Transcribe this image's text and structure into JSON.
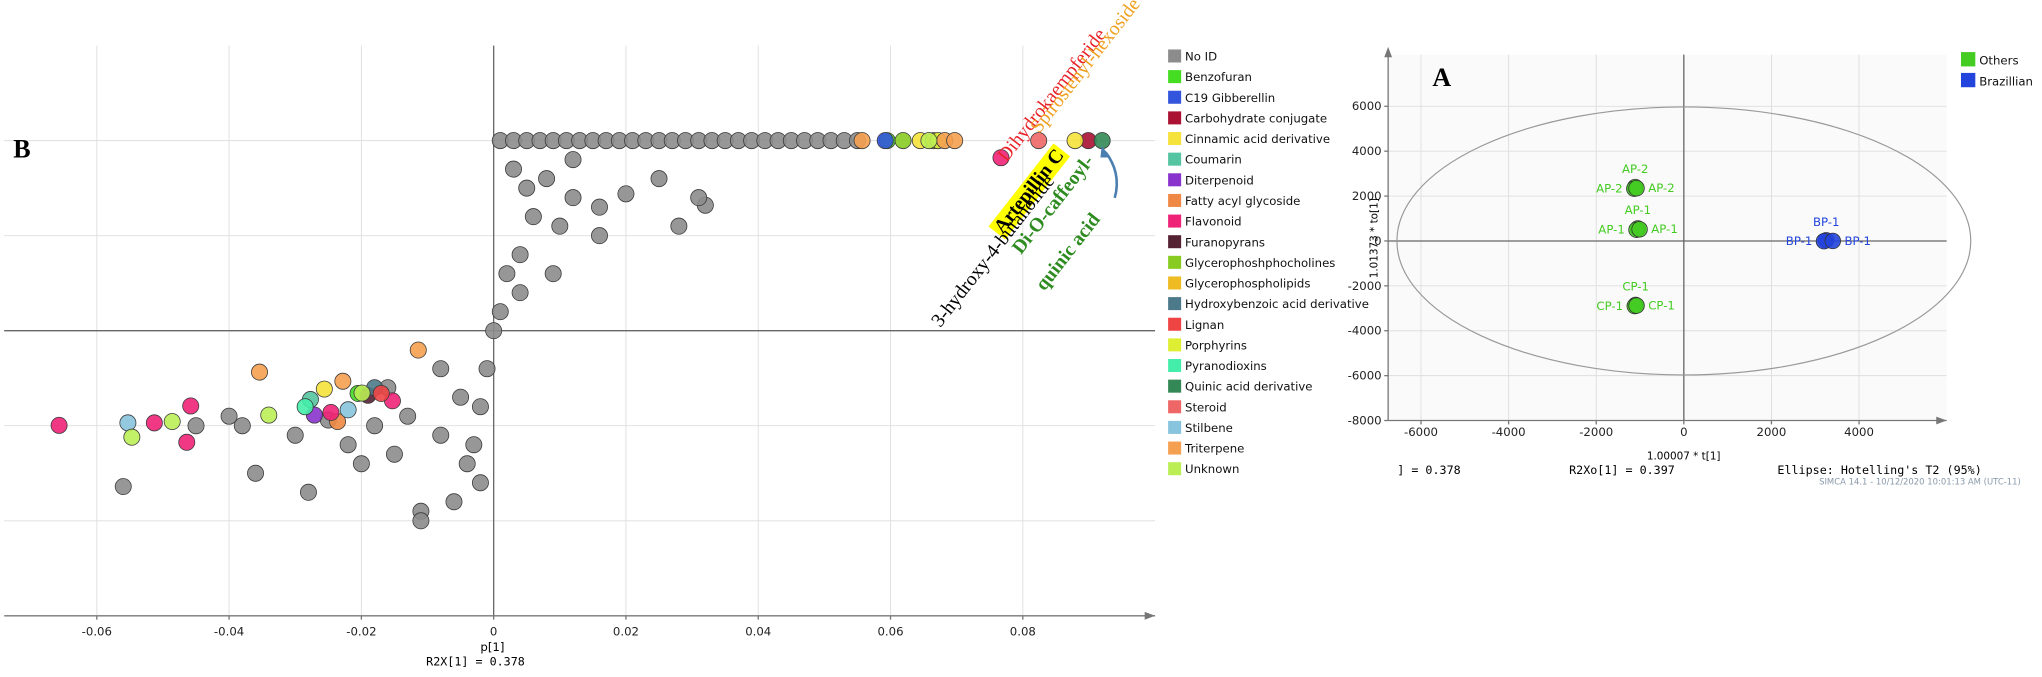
{
  "chart_data": [
    {
      "type": "scatter",
      "panel": "B",
      "xlabel": "p[1]",
      "xlabel2": "R2X[1] = 0.378",
      "xlim": [
        -0.074,
        0.1
      ],
      "ylim": [
        -1.5,
        1.5
      ],
      "xticks": [
        -0.06,
        -0.04,
        -0.02,
        0,
        0.02,
        0.04,
        0.06,
        0.08
      ],
      "yticks": [
        -1,
        -0.5,
        0,
        0.5,
        1
      ],
      "ytick_labels": false,
      "grid": true,
      "legend": "right",
      "annotations": [
        {
          "text": "Dihydrokaempferide",
          "color": "#e8242a"
        },
        {
          "text": "Spirostenyl-hexoside",
          "color": "#f0a020"
        },
        {
          "text": "Artepillin C",
          "color": "#000000",
          "highlight": "#ffff00"
        },
        {
          "text": "3-hydroxy-4-butanolide",
          "color": "#000000"
        },
        {
          "text": "Di-O-caffeoyl-",
          "color": "#2e8b20"
        },
        {
          "text": "quinic acid",
          "color": "#2e8b20"
        }
      ],
      "series": [
        {
          "name": "No ID",
          "color": "#8c8c8c",
          "x": [
            0.001,
            0.003,
            0.005,
            0.007,
            0.009,
            0.011,
            0.013,
            0.015,
            0.017,
            0.019,
            0.021,
            0.023,
            0.025,
            0.027,
            0.029,
            0.031,
            0.033,
            0.035,
            0.037,
            0.039,
            0.041,
            0.043,
            0.045,
            0.047,
            0.049,
            0.051,
            0.053,
            0.055,
            0.003,
            0.005,
            0.008,
            0.012,
            0.016,
            0.02,
            0.025,
            0.032,
            0.016,
            0.01,
            0.006,
            0.004,
            0.002,
            0.001,
            0.0,
            -0.001,
            -0.002,
            -0.003,
            -0.002,
            -0.011,
            -0.011,
            -0.004,
            -0.008,
            -0.013,
            -0.018,
            -0.022,
            -0.02,
            -0.03,
            -0.038,
            -0.04,
            -0.036,
            -0.056,
            -0.028,
            -0.015,
            -0.025,
            -0.008,
            -0.005,
            0.031,
            0.028,
            0.012,
            0.009,
            0.004,
            -0.045,
            -0.016,
            -0.006
          ],
          "y": [
            1,
            1,
            1,
            1,
            1,
            1,
            1,
            1,
            1,
            1,
            1,
            1,
            1,
            1,
            1,
            1,
            1,
            1,
            1,
            1,
            1,
            1,
            1,
            1,
            1,
            1,
            1,
            1,
            0.85,
            0.75,
            0.8,
            0.7,
            0.65,
            0.72,
            0.8,
            0.66,
            0.5,
            0.55,
            0.6,
            0.4,
            0.3,
            0.1,
            0.0,
            -0.2,
            -0.4,
            -0.6,
            -0.8,
            -0.95,
            -1.0,
            -0.7,
            -0.55,
            -0.45,
            -0.5,
            -0.6,
            -0.7,
            -0.55,
            -0.5,
            -0.45,
            -0.75,
            -0.82,
            -0.85,
            -0.65,
            -0.47,
            -0.2,
            -0.35,
            0.7,
            0.55,
            0.9,
            0.3,
            0.2,
            -0.5,
            -0.3,
            -0.9
          ]
        },
        {
          "name": "Benzofuran",
          "color": "#44dd22",
          "x": [
            0.0595,
            -0.0205
          ],
          "y": [
            1,
            -0.33
          ]
        },
        {
          "name": "C19 Gibberellin",
          "color": "#3355dd",
          "x": [
            0.0592
          ],
          "y": [
            1
          ]
        },
        {
          "name": "Carbohydrate conjugate",
          "color": "#aa1133",
          "x": [
            0.0899
          ],
          "y": [
            1
          ]
        },
        {
          "name": "Cinnamic acid derivative",
          "color": "#f5e23a",
          "x": [
            0.0879,
            0.0645,
            -0.0256
          ],
          "y": [
            1,
            1,
            -0.307
          ]
        },
        {
          "name": "Coumarin",
          "color": "#55c4a0",
          "x": [
            -0.0277
          ],
          "y": [
            -0.362
          ]
        },
        {
          "name": "Diterpenoid",
          "color": "#8833cc",
          "x": [
            -0.0271
          ],
          "y": [
            -0.444
          ]
        },
        {
          "name": "Fatty acyl glycoside",
          "color": "#ee8844",
          "x": [
            -0.0236
          ],
          "y": [
            -0.478
          ]
        },
        {
          "name": "Flavonoid",
          "color": "#ee2277",
          "x": [
            0.0767,
            -0.0657,
            -0.0513,
            -0.0458,
            -0.0464,
            -0.0246,
            -0.0153
          ],
          "y": [
            0.91,
            -0.498,
            -0.485,
            -0.396,
            -0.587,
            -0.43,
            -0.369
          ]
        },
        {
          "name": "Furanopyrans",
          "color": "#552233",
          "x": [
            -0.019
          ],
          "y": [
            -0.34
          ]
        },
        {
          "name": "Glycerophoshphocholines",
          "color": "#88cc22",
          "x": [
            0.0619
          ],
          "y": [
            1
          ]
        },
        {
          "name": "Glycerophospholipids",
          "color": "#eebb22",
          "x": [
            0.0665
          ],
          "y": [
            1
          ]
        },
        {
          "name": "Hydroxybenzoic acid derivative",
          "color": "#4d7a8a",
          "x": [
            -0.018
          ],
          "y": [
            -0.3
          ]
        },
        {
          "name": "Lignan",
          "color": "#ee4444",
          "x": [
            -0.017
          ],
          "y": [
            -0.33
          ]
        },
        {
          "name": "Porphyrins",
          "color": "#ddee33",
          "x": [
            0.0672
          ],
          "y": [
            1
          ]
        },
        {
          "name": "Pyranodioxins",
          "color": "#44eeaa",
          "x": [
            -0.0285
          ],
          "y": [
            -0.4
          ]
        },
        {
          "name": "Quinic acid derivative",
          "color": "#338855",
          "x": [
            0.092
          ],
          "y": [
            1
          ]
        },
        {
          "name": "Steroid",
          "color": "#ee6666",
          "x": [
            0.0824
          ],
          "y": [
            1
          ]
        },
        {
          "name": "Stilbene",
          "color": "#88c4dd",
          "x": [
            -0.0553,
            -0.022
          ],
          "y": [
            -0.485,
            -0.416
          ]
        },
        {
          "name": "Triterpene",
          "color": "#f5a050",
          "x": [
            0.0557,
            0.0682,
            0.0697,
            -0.0354,
            -0.0228,
            -0.0114
          ],
          "y": [
            1,
            1,
            1,
            -0.218,
            -0.266,
            -0.102
          ]
        },
        {
          "name": "Unknown",
          "color": "#bbee55",
          "x": [
            0.0658,
            -0.0547,
            -0.0486,
            -0.034,
            -0.0199
          ],
          "y": [
            1,
            -0.56,
            -0.478,
            -0.444,
            -0.328
          ]
        }
      ]
    },
    {
      "type": "scatter",
      "panel": "A",
      "xlabel": "1.00007 * t[1]",
      "ylabel": "1.01373 * to[1]",
      "xlim": [
        -6750,
        6000
      ],
      "ylim": [
        -8000,
        8300
      ],
      "xticks": [
        -6000,
        -4000,
        -2000,
        0,
        2000,
        4000
      ],
      "yticks": [
        -8000,
        -6000,
        -4000,
        -2000,
        0,
        2000,
        4000,
        6000
      ],
      "grid": true,
      "legend": "upper right",
      "ellipse": {
        "rx": 6550,
        "ry": 5970
      },
      "notes": [
        "] = 0.378",
        "R2Xo[1] = 0.397",
        "Ellipse: Hotelling's T2 (95%)"
      ],
      "footer": "SIMCA 14.1 - 10/12/2020 10:01:13 AM (UTC-11)",
      "series": [
        {
          "name": "Others",
          "color": "#44cc22",
          "x": [
            -1110,
            -1130,
            -1080,
            -1050,
            -1080,
            -1010,
            -1100,
            -1120,
            -1080
          ],
          "y": [
            2400,
            2330,
            2350,
            560,
            500,
            520,
            -2850,
            -2900,
            -2880
          ],
          "labels": [
            "AP-2",
            "AP-2",
            "AP-2",
            "AP-1",
            "AP-1",
            "AP-1",
            "CP-1",
            "CP-1",
            "CP-1"
          ]
        },
        {
          "name": "Brazillian",
          "color": "#2244dd",
          "x": [
            3250,
            3200,
            3400
          ],
          "y": [
            30,
            -10,
            0
          ],
          "labels": [
            "BP-1",
            "BP-1",
            "BP-1"
          ]
        }
      ]
    }
  ]
}
